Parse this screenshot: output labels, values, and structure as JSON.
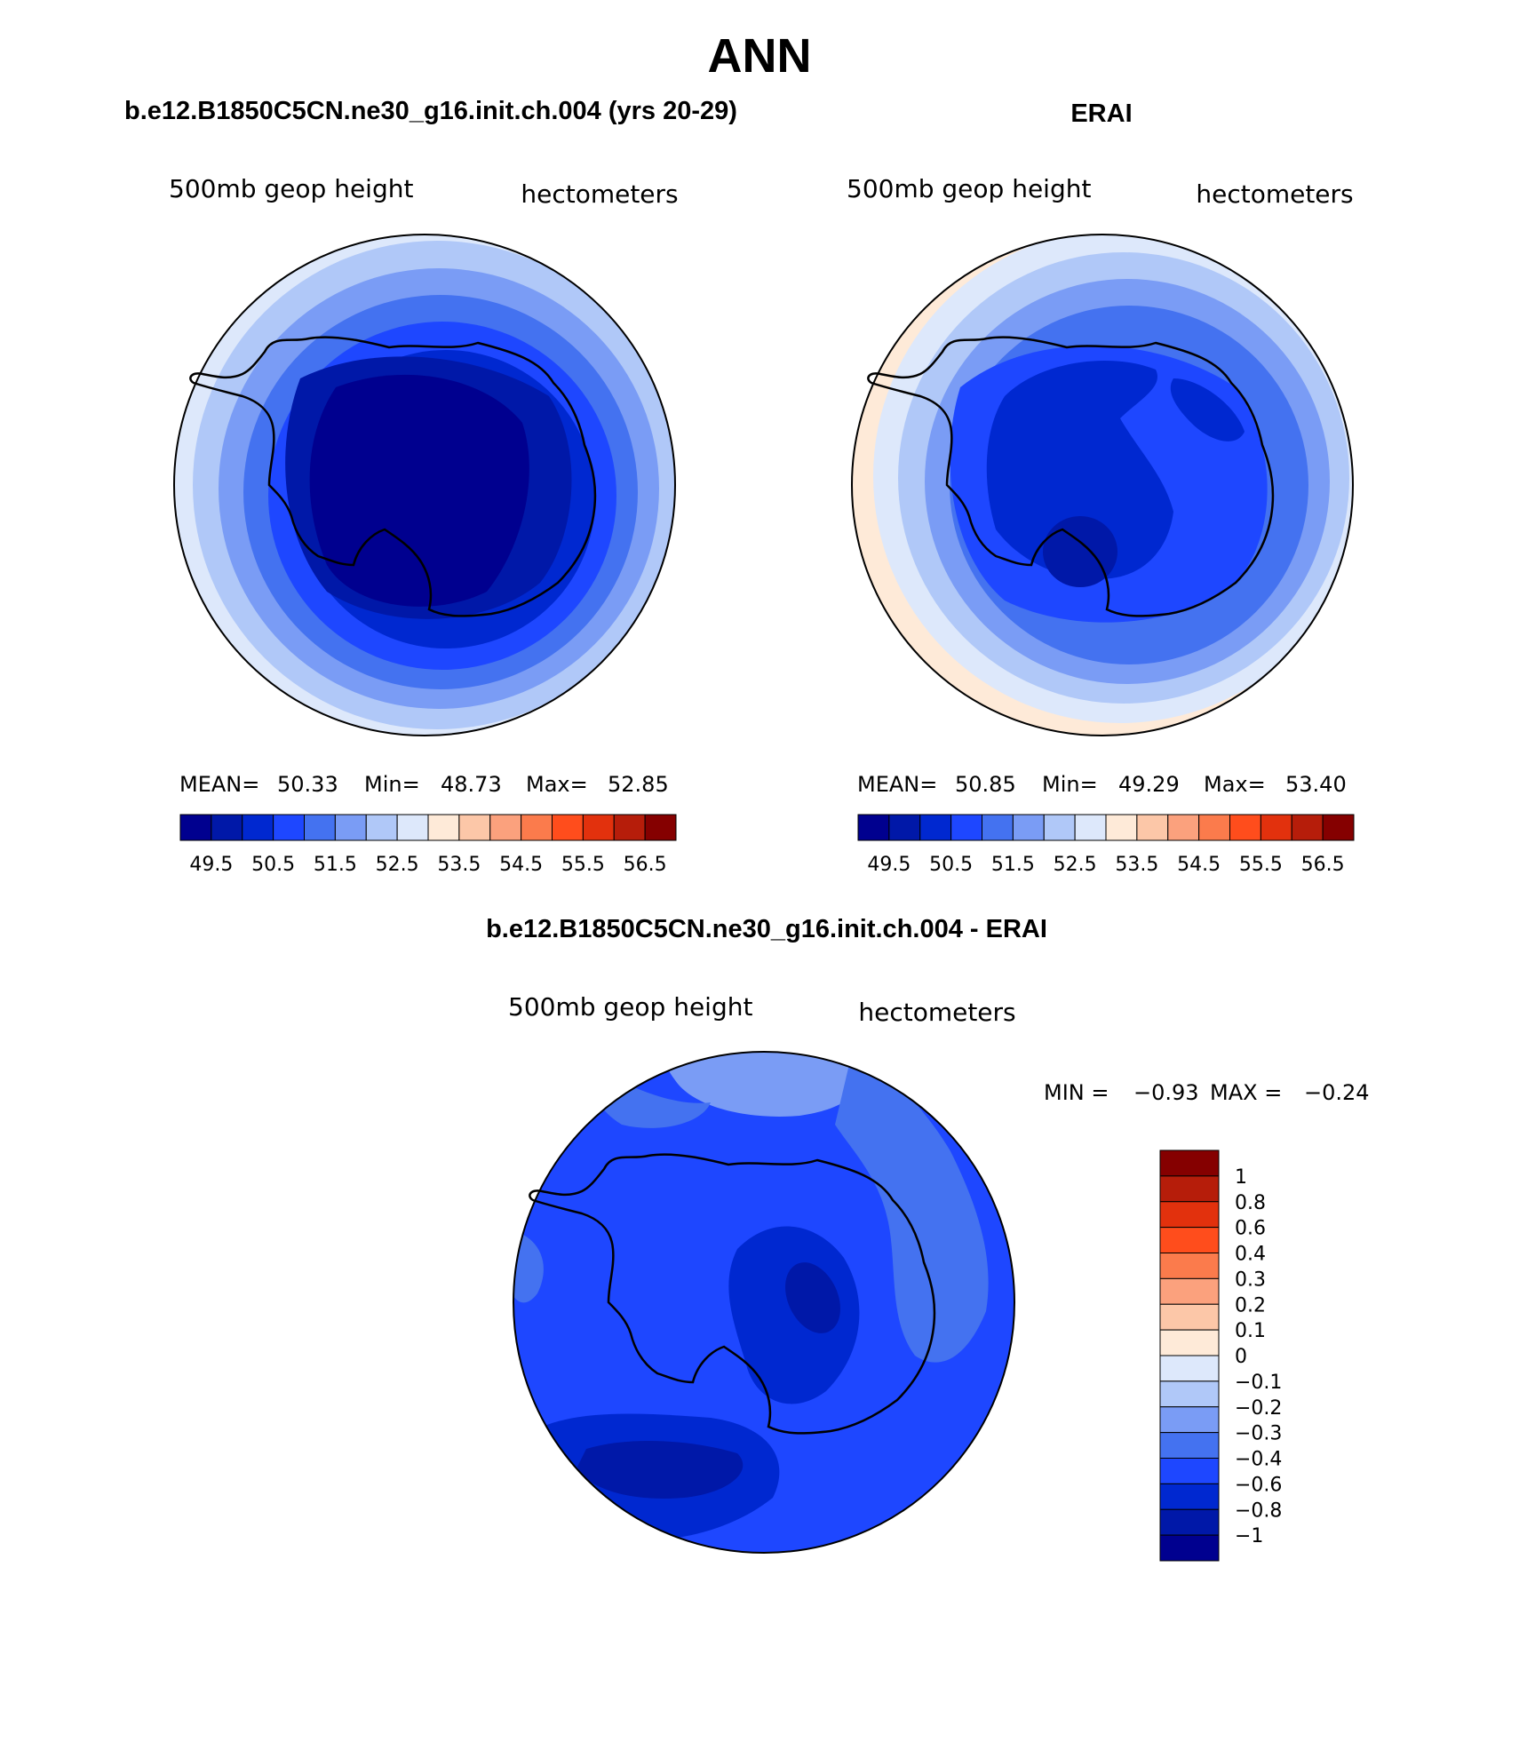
{
  "figure": {
    "title": "ANN",
    "panels": [
      {
        "id": "model",
        "heading": "b.e12.B1850C5CN.ne30_g16.init.ch.004 (yrs 20-29)",
        "left_label": "500mb geop height",
        "right_label": "hectometers",
        "stats": {
          "mean_label": "MEAN=",
          "mean": "50.33",
          "min_label": "Min=",
          "min": "48.73",
          "max_label": "Max=",
          "max": "52.85"
        }
      },
      {
        "id": "obs",
        "heading": "ERAI",
        "left_label": "500mb geop height",
        "right_label": "hectometers",
        "stats": {
          "mean_label": "MEAN=",
          "mean": "50.85",
          "min_label": "Min=",
          "min": "49.29",
          "max_label": "Max=",
          "max": "53.40"
        }
      },
      {
        "id": "diff",
        "heading": "b.e12.B1850C5CN.ne30_g16.init.ch.004 - ERAI",
        "left_label": "500mb geop height",
        "right_label": "hectometers",
        "stats": {
          "min_label": "MIN =",
          "min": "−0.93",
          "max_label": "MAX =",
          "max": "−0.24"
        }
      }
    ]
  },
  "colorbars": {
    "abs": {
      "colors": [
        "#00008f",
        "#0018a8",
        "#0028d0",
        "#1e47ff",
        "#4472f0",
        "#7a9cf5",
        "#b0c8f8",
        "#dde8fb",
        "#feead8",
        "#fcc7a8",
        "#fba17d",
        "#fb7b4c",
        "#ff4d1c",
        "#e2310d",
        "#b61d0a",
        "#850000"
      ],
      "tick_labels": [
        "49.5",
        "50.5",
        "51.5",
        "52.5",
        "53.5",
        "54.5",
        "55.5",
        "56.5"
      ]
    },
    "diff": {
      "colors": [
        "#850000",
        "#b61d0a",
        "#e2310d",
        "#ff4d1c",
        "#fb7b4c",
        "#fba17d",
        "#fcc7a8",
        "#feead8",
        "#dde8fb",
        "#b0c8f8",
        "#7a9cf5",
        "#4472f0",
        "#1e47ff",
        "#0028d0",
        "#0018a8",
        "#00008f"
      ],
      "tick_labels": [
        "1",
        "0.8",
        "0.6",
        "0.4",
        "0.3",
        "0.2",
        "0.1",
        "0",
        "−0.1",
        "−0.2",
        "−0.3",
        "−0.4",
        "−0.6",
        "−0.8",
        "−1"
      ]
    }
  },
  "colors": {
    "land_outline": "#000000",
    "model_field": {
      "outer": "#dde8fb",
      "ring": [
        "#b0c8f8",
        "#7a9cf5",
        "#4472f0",
        "#1e47ff",
        "#0028d0",
        "#0018a8"
      ],
      "core": "#00008f"
    },
    "obs_field": {
      "outer": "#feead8",
      "ring": [
        "#dde8fb",
        "#b0c8f8",
        "#7a9cf5",
        "#4472f0",
        "#1e47ff"
      ],
      "core": "#0028d0",
      "spot": "#0018a8"
    },
    "diff_field": {
      "base": "#1e47ff",
      "light": "#7a9cf5",
      "mid": "#4472f0",
      "dark": "#0028d0",
      "darkest": "#0018a8"
    }
  }
}
